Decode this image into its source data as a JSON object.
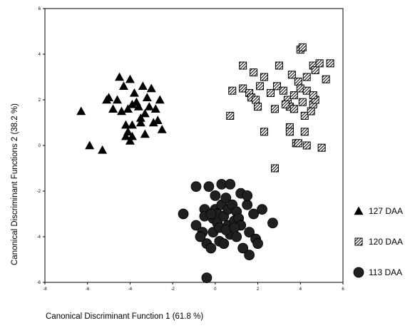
{
  "chart_data": {
    "type": "scatter",
    "title": "",
    "xlabel": "Canonical Discriminant Function 1 (61.8 %)",
    "ylabel": "Canonical Discriminant Functions 2 (38.2 %)",
    "xlim": [
      -8,
      6
    ],
    "ylim": [
      -6,
      6
    ],
    "xticks": [
      -8,
      -6,
      -4,
      -2,
      0,
      2,
      4,
      6
    ],
    "yticks": [
      -6,
      -4,
      -2,
      0,
      2,
      4,
      6
    ],
    "grid": false,
    "legend_position": "right",
    "series": [
      {
        "name": "127 DAA",
        "marker": "triangle",
        "color": "#000000",
        "points": [
          [
            -6.3,
            1.5
          ],
          [
            -5.9,
            0.0
          ],
          [
            -5.3,
            -0.2
          ],
          [
            -5.1,
            2.0
          ],
          [
            -5.0,
            2.1
          ],
          [
            -4.8,
            1.6
          ],
          [
            -4.6,
            2.0
          ],
          [
            -4.5,
            3.0
          ],
          [
            -4.4,
            1.5
          ],
          [
            -4.3,
            2.6
          ],
          [
            -4.2,
            0.9
          ],
          [
            -4.1,
            1.6
          ],
          [
            -4.1,
            0.6
          ],
          [
            -4.0,
            2.9
          ],
          [
            -4.0,
            0.2
          ],
          [
            -3.9,
            1.8
          ],
          [
            -3.9,
            0.4
          ],
          [
            -3.8,
            2.3
          ],
          [
            -3.7,
            1.9
          ],
          [
            -3.6,
            1.7
          ],
          [
            -3.5,
            1.0
          ],
          [
            -3.4,
            2.6
          ],
          [
            -3.3,
            1.4
          ],
          [
            -3.3,
            0.5
          ],
          [
            -3.2,
            2.1
          ],
          [
            -3.1,
            1.7
          ],
          [
            -3.0,
            2.5
          ],
          [
            -2.9,
            1.0
          ],
          [
            -2.8,
            1.6
          ],
          [
            -2.7,
            1.1
          ],
          [
            -2.6,
            2.0
          ],
          [
            -2.5,
            0.7
          ],
          [
            -3.5,
            1.2
          ],
          [
            -3.9,
            0.9
          ],
          [
            -4.2,
            0.4
          ]
        ]
      },
      {
        "name": "120 DAA",
        "marker": "square",
        "color": "#000000",
        "points": [
          [
            0.7,
            1.3
          ],
          [
            0.8,
            2.4
          ],
          [
            1.3,
            3.5
          ],
          [
            1.3,
            2.5
          ],
          [
            1.6,
            2.3
          ],
          [
            1.7,
            2.1
          ],
          [
            1.8,
            3.2
          ],
          [
            1.9,
            2.0
          ],
          [
            2.0,
            1.7
          ],
          [
            2.3,
            0.6
          ],
          [
            2.3,
            3.0
          ],
          [
            2.6,
            2.3
          ],
          [
            2.8,
            -1.0
          ],
          [
            2.8,
            1.6
          ],
          [
            2.9,
            2.6
          ],
          [
            3.0,
            3.5
          ],
          [
            3.2,
            2.4
          ],
          [
            3.4,
            2.0
          ],
          [
            3.5,
            0.8
          ],
          [
            3.5,
            0.6
          ],
          [
            3.5,
            1.7
          ],
          [
            3.6,
            3.1
          ],
          [
            3.7,
            2.2
          ],
          [
            3.7,
            1.6
          ],
          [
            3.8,
            0.1
          ],
          [
            3.9,
            2.8
          ],
          [
            3.9,
            0.1
          ],
          [
            4.0,
            4.2
          ],
          [
            4.0,
            2.5
          ],
          [
            4.1,
            1.9
          ],
          [
            4.2,
            0.6
          ],
          [
            4.2,
            1.3
          ],
          [
            4.3,
            3.0
          ],
          [
            4.3,
            2.4
          ],
          [
            4.3,
            0.0
          ],
          [
            4.5,
            1.5
          ],
          [
            4.6,
            1.8
          ],
          [
            4.6,
            3.5
          ],
          [
            4.7,
            3.3
          ],
          [
            4.7,
            2.0
          ],
          [
            4.9,
            3.6
          ],
          [
            5.0,
            -0.1
          ],
          [
            5.2,
            2.9
          ],
          [
            5.4,
            3.6
          ],
          [
            3.3,
            1.8
          ],
          [
            2.1,
            2.6
          ],
          [
            4.1,
            4.3
          ],
          [
            4.6,
            2.2
          ]
        ]
      },
      {
        "name": "113 DAA",
        "marker": "circle",
        "color": "#000000",
        "points": [
          [
            -1.5,
            -3.0
          ],
          [
            -0.9,
            -1.8
          ],
          [
            -0.9,
            -3.5
          ],
          [
            -0.6,
            -3.8
          ],
          [
            -0.5,
            -2.8
          ],
          [
            -0.5,
            -3.1
          ],
          [
            -0.4,
            -4.3
          ],
          [
            -0.4,
            -5.8
          ],
          [
            -0.3,
            -1.8
          ],
          [
            -0.2,
            -4.5
          ],
          [
            -0.1,
            -3.2
          ],
          [
            -0.1,
            -3.8
          ],
          [
            0.0,
            -2.2
          ],
          [
            0.0,
            -2.8
          ],
          [
            0.1,
            -3.0
          ],
          [
            0.1,
            -3.4
          ],
          [
            0.2,
            -3.6
          ],
          [
            0.2,
            -4.2
          ],
          [
            0.3,
            -1.7
          ],
          [
            0.3,
            -2.6
          ],
          [
            0.4,
            -3.1
          ],
          [
            0.4,
            -4.3
          ],
          [
            0.5,
            -2.3
          ],
          [
            0.6,
            -2.8
          ],
          [
            0.6,
            -3.5
          ],
          [
            0.7,
            -1.7
          ],
          [
            0.7,
            -3.9
          ],
          [
            0.8,
            -2.6
          ],
          [
            0.9,
            -3.3
          ],
          [
            1.0,
            -2.9
          ],
          [
            1.0,
            -4.0
          ],
          [
            1.1,
            -3.2
          ],
          [
            1.2,
            -2.1
          ],
          [
            1.2,
            -3.5
          ],
          [
            1.3,
            -4.5
          ],
          [
            1.5,
            -2.6
          ],
          [
            1.6,
            -3.8
          ],
          [
            1.6,
            -4.8
          ],
          [
            1.8,
            -3.0
          ],
          [
            1.9,
            -4.1
          ],
          [
            2.0,
            -4.3
          ],
          [
            2.2,
            -2.8
          ],
          [
            2.7,
            -3.4
          ],
          [
            -0.2,
            -3.0
          ],
          [
            0.5,
            -3.7
          ],
          [
            1.5,
            -2.2
          ],
          [
            0.9,
            -3.6
          ],
          [
            -0.7,
            -4.0
          ]
        ]
      }
    ]
  }
}
